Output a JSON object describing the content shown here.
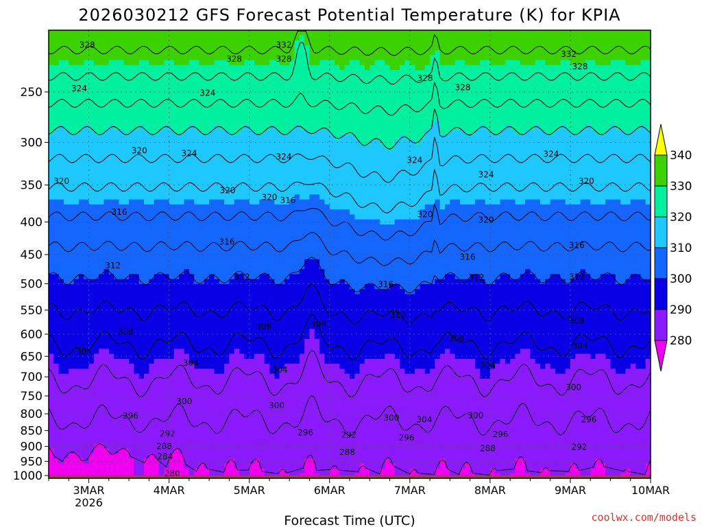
{
  "chart_data": {
    "type": "heatmap",
    "title": "2026030212 GFS Forecast Potential Temperature (K) for KPIA",
    "xlabel": "Forecast Time (UTC)",
    "ylabel": "",
    "credit": "coolwx.com/models",
    "x_ticks": [
      {
        "label": "3MAR",
        "sub": "2026",
        "day": 3
      },
      {
        "label": "4MAR",
        "sub": "",
        "day": 4
      },
      {
        "label": "5MAR",
        "sub": "",
        "day": 5
      },
      {
        "label": "6MAR",
        "sub": "",
        "day": 6
      },
      {
        "label": "7MAR",
        "sub": "",
        "day": 7
      },
      {
        "label": "8MAR",
        "sub": "",
        "day": 8
      },
      {
        "label": "9MAR",
        "sub": "",
        "day": 9
      },
      {
        "label": "10MAR",
        "sub": "",
        "day": 10
      }
    ],
    "xlim_days": [
      2.5,
      10.0
    ],
    "y_ticks_hpa": [
      250,
      300,
      350,
      400,
      450,
      500,
      550,
      600,
      650,
      700,
      750,
      800,
      850,
      900,
      950,
      1000
    ],
    "ylim_hpa": [
      200,
      1010
    ],
    "y_scale": "log-pressure (inverted)",
    "grid": "dotted",
    "colorbar": {
      "levels": [
        280,
        290,
        300,
        310,
        320,
        330,
        340
      ],
      "labels": [
        "280",
        "290",
        "300",
        "310",
        "320",
        "330",
        "340"
      ],
      "colors": [
        "#f000f0",
        "#8c1aff",
        "#0a00e6",
        "#1466ff",
        "#1ec8ff",
        "#00f0a0",
        "#3cd200",
        "#ffff00"
      ]
    },
    "contour_interval_K": 4,
    "ground_below_hpa": 1000,
    "ground_color": "#9c4a22",
    "contour_labels": [
      {
        "text": "328",
        "day": 2.98,
        "p": 211
      },
      {
        "text": "332",
        "day": 5.43,
        "p": 211
      },
      {
        "text": "328",
        "day": 5.43,
        "p": 222
      },
      {
        "text": "332",
        "day": 8.98,
        "p": 218
      },
      {
        "text": "328",
        "day": 9.12,
        "p": 228
      },
      {
        "text": "328",
        "day": 7.66,
        "p": 246
      },
      {
        "text": "328",
        "day": 4.81,
        "p": 222
      },
      {
        "text": "328",
        "day": 7.19,
        "p": 238
      },
      {
        "text": "324",
        "day": 2.88,
        "p": 247
      },
      {
        "text": "324",
        "day": 4.48,
        "p": 251
      },
      {
        "text": "324",
        "day": 4.25,
        "p": 312
      },
      {
        "text": "324",
        "day": 5.43,
        "p": 316
      },
      {
        "text": "324",
        "day": 7.06,
        "p": 320
      },
      {
        "text": "324",
        "day": 8.76,
        "p": 313
      },
      {
        "text": "324",
        "day": 7.95,
        "p": 337
      },
      {
        "text": "320",
        "day": 3.63,
        "p": 309
      },
      {
        "text": "320",
        "day": 2.66,
        "p": 345
      },
      {
        "text": "320",
        "day": 4.73,
        "p": 357
      },
      {
        "text": "320",
        "day": 5.25,
        "p": 366
      },
      {
        "text": "320",
        "day": 7.19,
        "p": 389
      },
      {
        "text": "320",
        "day": 7.95,
        "p": 397
      },
      {
        "text": "320",
        "day": 9.2,
        "p": 345
      },
      {
        "text": "316",
        "day": 5.48,
        "p": 370
      },
      {
        "text": "316",
        "day": 3.38,
        "p": 386
      },
      {
        "text": "316",
        "day": 4.72,
        "p": 430
      },
      {
        "text": "316",
        "day": 7.72,
        "p": 454
      },
      {
        "text": "316",
        "day": 6.7,
        "p": 501
      },
      {
        "text": "316",
        "day": 9.08,
        "p": 435
      },
      {
        "text": "312",
        "day": 3.3,
        "p": 468
      },
      {
        "text": "312",
        "day": 4.91,
        "p": 488
      },
      {
        "text": "312",
        "day": 7.83,
        "p": 489
      },
      {
        "text": "312",
        "day": 6.85,
        "p": 560
      },
      {
        "text": "312",
        "day": 9.08,
        "p": 488
      },
      {
        "text": "308",
        "day": 3.46,
        "p": 595
      },
      {
        "text": "308",
        "day": 5.18,
        "p": 584
      },
      {
        "text": "308",
        "day": 5.86,
        "p": 578
      },
      {
        "text": "308",
        "day": 7.58,
        "p": 610
      },
      {
        "text": "308",
        "day": 9.08,
        "p": 572
      },
      {
        "text": "304",
        "day": 2.94,
        "p": 639
      },
      {
        "text": "304",
        "day": 4.27,
        "p": 666
      },
      {
        "text": "304",
        "day": 5.38,
        "p": 683
      },
      {
        "text": "304",
        "day": 7.97,
        "p": 672
      },
      {
        "text": "304",
        "day": 9.12,
        "p": 626
      },
      {
        "text": "300",
        "day": 4.19,
        "p": 765
      },
      {
        "text": "300",
        "day": 5.34,
        "p": 777
      },
      {
        "text": "300",
        "day": 6.77,
        "p": 812
      },
      {
        "text": "300",
        "day": 7.82,
        "p": 805
      },
      {
        "text": "300",
        "day": 9.04,
        "p": 727
      },
      {
        "text": "304",
        "day": 7.18,
        "p": 817
      },
      {
        "text": "296",
        "day": 3.52,
        "p": 806
      },
      {
        "text": "296",
        "day": 5.7,
        "p": 856
      },
      {
        "text": "296",
        "day": 6.96,
        "p": 873
      },
      {
        "text": "296",
        "day": 8.13,
        "p": 862
      },
      {
        "text": "296",
        "day": 9.23,
        "p": 817
      },
      {
        "text": "292",
        "day": 3.98,
        "p": 860
      },
      {
        "text": "292",
        "day": 6.24,
        "p": 864
      },
      {
        "text": "292",
        "day": 9.11,
        "p": 902
      },
      {
        "text": "288",
        "day": 3.94,
        "p": 900
      },
      {
        "text": "288",
        "day": 6.22,
        "p": 919
      },
      {
        "text": "288",
        "day": 7.97,
        "p": 907
      },
      {
        "text": "284",
        "day": 3.95,
        "p": 934
      },
      {
        "text": "280",
        "day": 4.04,
        "p": 993
      }
    ]
  }
}
